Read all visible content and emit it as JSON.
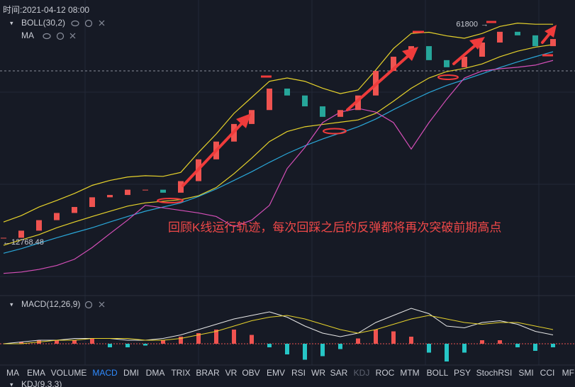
{
  "header": {
    "time": "时间:2021-04-12 08:00"
  },
  "chart_data": [
    {
      "type": "candlestick",
      "indicators": [
        "BOLL(30,2)",
        "MA"
      ],
      "log_scale": true,
      "ylim": [
        11000,
        66000
      ],
      "price_labels": [
        12768.48,
        61800
      ],
      "annotation": "回顾K线运行轨迹，每次回踩之后的反弹都将再次突破前期高点",
      "up_color": "#ef5350",
      "down_color": "#26a69a",
      "close": [
        13200,
        13900,
        15000,
        15800,
        16500,
        17700,
        18000,
        18700,
        18700,
        18300,
        19900,
        23300,
        26500,
        30100,
        33300,
        38900,
        37000,
        34200,
        31700,
        33300,
        37000,
        44200,
        49000,
        52900,
        47800,
        45400,
        49000,
        54300,
        58700,
        57200,
        52900,
        55700
      ],
      "series": [
        {
          "color": "#e6d22b",
          "values": [
            14800,
            15500,
            16500,
            17300,
            18200,
            19300,
            20000,
            20500,
            20700,
            20600,
            21200,
            24500,
            28000,
            32500,
            36500,
            41000,
            42000,
            41000,
            39000,
            37500,
            38500,
            44500,
            52000,
            58000,
            58500,
            57000,
            56000,
            58000,
            61000,
            62500,
            62000,
            62000
          ]
        },
        {
          "color": "#e6d22b",
          "values": [
            12500,
            13000,
            13500,
            14200,
            14800,
            15400,
            16000,
            16600,
            17000,
            17200,
            17400,
            17900,
            19000,
            21000,
            23500,
            26500,
            28500,
            29500,
            30000,
            30500,
            31000,
            32500,
            35500,
            39000,
            42000,
            44000,
            45000,
            46500,
            49000,
            51000,
            52500,
            53500
          ]
        },
        {
          "color": "#2aa7d8",
          "values": [
            11800,
            12200,
            12700,
            13200,
            13700,
            14200,
            14800,
            15400,
            16000,
            16500,
            17000,
            17800,
            18800,
            20000,
            21300,
            22800,
            24300,
            25700,
            27000,
            28200,
            29500,
            31200,
            33400,
            35600,
            37800,
            39800,
            41500,
            43300,
            45300,
            47200,
            49000,
            50800
          ]
        },
        {
          "color": "#d54fb8",
          "values": [
            10200,
            10300,
            10500,
            10800,
            11300,
            12300,
            13600,
            15000,
            16700,
            16400,
            16100,
            15800,
            15400,
            14300,
            15000,
            16700,
            21800,
            25400,
            30400,
            32800,
            33700,
            32800,
            30400,
            25100,
            30400,
            36000,
            42000,
            44200,
            44900,
            45400,
            46100,
            47700
          ]
        }
      ]
    },
    {
      "type": "macd",
      "title": "MACD(12,26,9)",
      "up_color": "#ef5350",
      "down_color": "#26c6c6",
      "histogram": [
        0,
        1,
        2,
        2,
        2,
        3,
        -2,
        -2,
        -1,
        2,
        4,
        6,
        8,
        8,
        5,
        -2,
        -6,
        -9,
        -7,
        -3,
        3,
        8,
        7,
        4,
        -5,
        -10,
        -5,
        2,
        2,
        -2,
        -4,
        -2
      ],
      "series": [
        {
          "color": "#e8e8e8",
          "values": [
            0,
            1,
            2,
            2,
            3,
            3,
            3,
            2,
            2,
            3,
            5,
            8,
            11,
            14,
            16,
            18,
            15,
            10,
            6,
            4,
            6,
            12,
            16,
            20,
            17,
            10,
            9,
            12,
            13,
            11,
            7,
            5
          ]
        },
        {
          "color": "#e6d22b",
          "values": [
            0,
            0,
            1,
            2,
            2,
            3,
            3,
            3,
            2,
            2,
            3,
            5,
            7,
            10,
            13,
            15,
            16,
            14,
            11,
            8,
            6,
            8,
            11,
            14,
            16,
            14,
            12,
            11,
            12,
            12,
            10,
            8
          ]
        }
      ]
    }
  ],
  "tabs": {
    "items": [
      "MA",
      "EMA",
      "VOLUME",
      "MACD",
      "DMI",
      "DMA",
      "TRIX",
      "BRAR",
      "VR",
      "OBV",
      "EMV",
      "RSI",
      "WR",
      "SAR",
      "KDJ",
      "ROC",
      "MTM",
      "BOLL",
      "PSY",
      "StochRSI",
      "SMI",
      "CCI",
      "MFI"
    ],
    "active": 3,
    "disabled": 14
  },
  "next_panel": "KDJ(9,3,3)"
}
